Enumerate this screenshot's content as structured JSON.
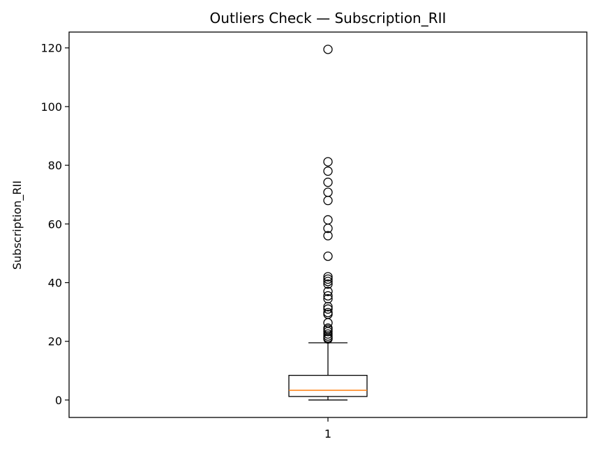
{
  "chart_data": {
    "type": "box",
    "title": "Outliers Check — Subscription_RII",
    "xlabel": "",
    "ylabel": "Subscription_RII",
    "categories": [
      "1"
    ],
    "ylim": [
      -5.95,
      125.4
    ],
    "y_ticks": [
      0,
      20,
      40,
      60,
      80,
      100,
      120
    ],
    "grid": false,
    "colors": {
      "box": "#000000",
      "median": "#ff7f0e",
      "outlier": "#000000"
    },
    "boxes": [
      {
        "category": "1",
        "whisker_low": 0.0,
        "q1": 1.2,
        "median": 3.3,
        "q3": 8.4,
        "whisker_high": 19.5,
        "outliers": [
          119.5,
          81.2,
          78.0,
          74.2,
          70.8,
          68.0,
          61.4,
          58.5,
          56.0,
          49.0,
          42.0,
          41.2,
          40.4,
          39.5,
          37.0,
          35.5,
          34.5,
          31.8,
          31.0,
          29.8,
          29.2,
          26.3,
          24.5,
          24.0,
          23.3,
          22.5,
          21.8,
          21.2,
          20.8
        ]
      }
    ]
  }
}
